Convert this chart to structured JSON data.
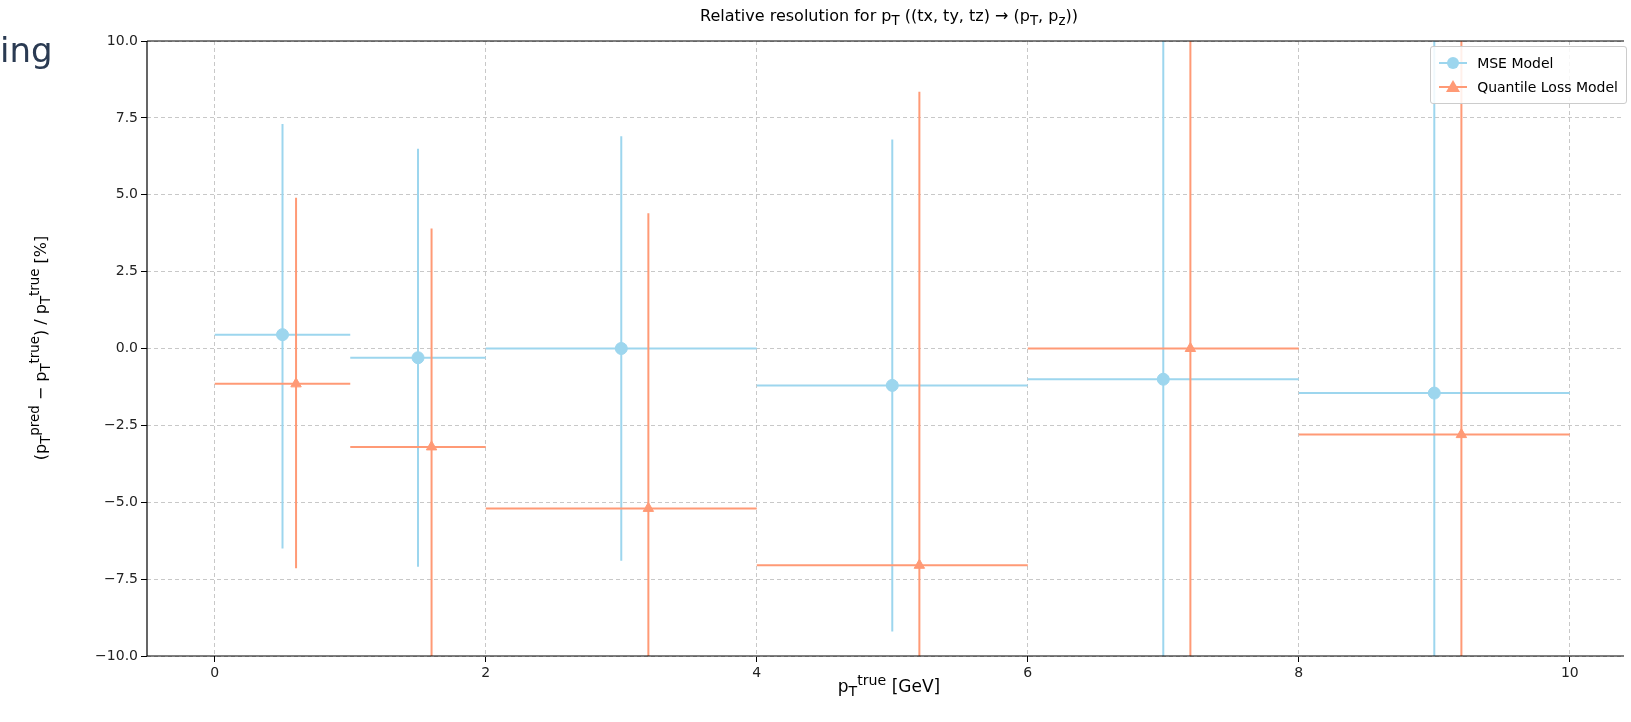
{
  "chart_data": {
    "type": "scatter",
    "title": "Relative resolution for p$_{T}$ ((tx, ty, tz) → (p$_{T}$, p$_{z}$))",
    "xlabel": "p$_{T}$$^{true}$ [GeV]",
    "ylabel": "(p$_{T}$$^{pred}$ − p$_{T}$$^{true}$) / p$_{T}$$^{true}$ [%]",
    "annotations": [
      "ing"
    ],
    "xlim": [
      -0.5,
      10.4
    ],
    "xticks": [
      0,
      2,
      4,
      6,
      8,
      10
    ],
    "ylim": [
      -10,
      10
    ],
    "yticks": [
      {
        "value": -10,
        "label": "−10.0"
      },
      {
        "value": -7.5,
        "label": "−7.5"
      },
      {
        "value": -5,
        "label": "−5.0"
      },
      {
        "value": -2.5,
        "label": "−2.5"
      },
      {
        "value": 0,
        "label": "0.0"
      },
      {
        "value": 2.5,
        "label": "2.5"
      },
      {
        "value": 5,
        "label": "5.0"
      },
      {
        "value": 7.5,
        "label": "7.5"
      },
      {
        "value": 10,
        "label": "10.0"
      }
    ],
    "grid": true,
    "legend": "top right",
    "series": [
      {
        "name": "MSE Model",
        "color": "#9dd6ee",
        "marker": "circle",
        "x": [
          0.5,
          1.5,
          3,
          5,
          7,
          9
        ],
        "values": [
          0.45,
          -0.3,
          0.0,
          -1.2,
          -1.0,
          -1.45
        ],
        "errors": [
          [
            -6.5,
            7.3
          ],
          [
            -7.1,
            6.5
          ],
          [
            -6.9,
            6.9
          ],
          [
            -9.2,
            6.8
          ],
          [
            -10,
            10
          ],
          [
            -10,
            10
          ]
        ],
        "xerrors": [
          [
            0,
            1
          ],
          [
            1,
            2
          ],
          [
            2,
            4
          ],
          [
            4,
            6
          ],
          [
            6,
            8
          ],
          [
            8,
            10
          ]
        ]
      },
      {
        "name": "Quantile Loss Model",
        "color": "#ff9a76",
        "marker": "triangle",
        "x": [
          0.6,
          1.6,
          3.2,
          5.2,
          7.2,
          9.2
        ],
        "values": [
          -1.15,
          -3.2,
          -5.2,
          -7.05,
          0.0,
          -2.8
        ],
        "errors": [
          [
            -7.15,
            4.9
          ],
          [
            -10,
            3.9
          ],
          [
            -10,
            4.4
          ],
          [
            -10,
            8.35
          ],
          [
            -10,
            10
          ],
          [
            -10,
            10
          ]
        ],
        "xerrors": [
          [
            0,
            1
          ],
          [
            1,
            2
          ],
          [
            2,
            4
          ],
          [
            4,
            6
          ],
          [
            6,
            8
          ],
          [
            8,
            10
          ]
        ]
      }
    ]
  }
}
